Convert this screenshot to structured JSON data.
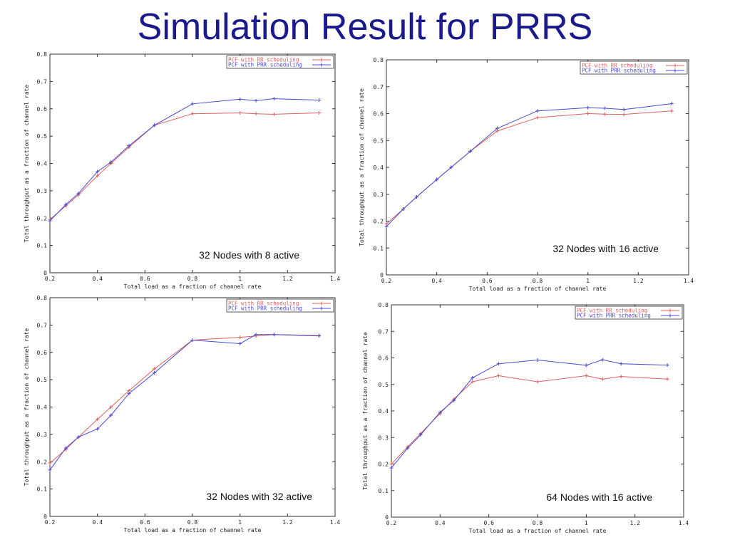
{
  "slide": {
    "title": "Simulation Result for PRRS"
  },
  "colors": {
    "title": "#1a1a8c",
    "rr": "#e06060",
    "prr": "#4a4ad0",
    "axis": "#333333"
  },
  "chart_data": [
    {
      "type": "line",
      "caption": "32 Nodes with 8 active",
      "xlabel": "Total load as a fraction of channel rate",
      "ylabel": "Total throughput as a fraction of channel rate",
      "xlim": [
        0.2,
        1.4
      ],
      "ylim": [
        0,
        0.8
      ],
      "xticks": [
        0.2,
        0.4,
        0.6,
        0.8,
        1,
        1.2,
        1.4
      ],
      "xtick_labels": [
        "0.2",
        "0.4",
        "0.6",
        "0.8",
        "1",
        "1.2",
        "1.4"
      ],
      "yticks": [
        0,
        0.1,
        0.2,
        0.3,
        0.4,
        0.5,
        0.6,
        0.7,
        0.8
      ],
      "ytick_labels": [
        "0",
        "0.1",
        "0.2",
        "0.3",
        "0.4",
        "0.5",
        "0.6",
        "0.7",
        "0.8"
      ],
      "legend": "top-right",
      "x": [
        0.2,
        0.267,
        0.32,
        0.4,
        0.457,
        0.533,
        0.64,
        0.8,
        1.0,
        1.067,
        1.143,
        1.333
      ],
      "series": [
        {
          "name": "PCF with RR scheduling",
          "color": "#e06060",
          "marker": "plus",
          "values": [
            0.195,
            0.245,
            0.285,
            0.355,
            0.4,
            0.46,
            0.54,
            0.582,
            0.585,
            0.582,
            0.58,
            0.585
          ]
        },
        {
          "name": "PCF with PRR scheduling",
          "color": "#4a4ad0",
          "marker": "plus",
          "values": [
            0.19,
            0.25,
            0.29,
            0.37,
            0.405,
            0.465,
            0.54,
            0.618,
            0.635,
            0.63,
            0.637,
            0.632
          ]
        }
      ]
    },
    {
      "type": "line",
      "caption": "32 Nodes with 16 active",
      "xlabel": "Total load as a fraction of channel rate",
      "ylabel": "Total throughput as a fraction of channel rate",
      "xlim": [
        0.2,
        1.4
      ],
      "ylim": [
        0,
        0.8
      ],
      "xticks": [
        0.2,
        0.4,
        0.6,
        0.8,
        1,
        1.2,
        1.4
      ],
      "xtick_labels": [
        "0.2",
        "0.4",
        "0.6",
        "0.8",
        "1",
        "1.2",
        "1.4"
      ],
      "yticks": [
        0,
        0.1,
        0.2,
        0.3,
        0.4,
        0.5,
        0.6,
        0.7,
        0.8
      ],
      "ytick_labels": [
        "0",
        "0.1",
        "0.2",
        "0.3",
        "0.4",
        "0.5",
        "0.6",
        "0.7",
        "0.8"
      ],
      "legend": "top-right",
      "x": [
        0.2,
        0.267,
        0.32,
        0.4,
        0.457,
        0.533,
        0.64,
        0.8,
        1.0,
        1.067,
        1.143,
        1.333
      ],
      "series": [
        {
          "name": "PCF with RR scheduling",
          "color": "#e06060",
          "marker": "plus",
          "values": [
            0.19,
            0.245,
            0.29,
            0.355,
            0.4,
            0.46,
            0.535,
            0.585,
            0.6,
            0.598,
            0.597,
            0.61
          ]
        },
        {
          "name": "PCF with PRR scheduling",
          "color": "#4a4ad0",
          "marker": "plus",
          "values": [
            0.18,
            0.245,
            0.29,
            0.355,
            0.4,
            0.46,
            0.545,
            0.61,
            0.622,
            0.62,
            0.615,
            0.637
          ]
        }
      ]
    },
    {
      "type": "line",
      "caption": "32 Nodes with 32 active",
      "xlabel": "Total load as a fraction of channel rate",
      "ylabel": "Total throughput as a fraction of channel rate",
      "xlim": [
        0.2,
        1.4
      ],
      "ylim": [
        0,
        0.8
      ],
      "xticks": [
        0.2,
        0.4,
        0.6,
        0.8,
        1,
        1.2,
        1.4
      ],
      "xtick_labels": [
        "0.2",
        "0.4",
        "0.6",
        "0.8",
        "1",
        "1.2",
        "1.4"
      ],
      "yticks": [
        0,
        0.1,
        0.2,
        0.3,
        0.4,
        0.5,
        0.6,
        0.7,
        0.8
      ],
      "ytick_labels": [
        "0",
        "0.1",
        "0.2",
        "0.3",
        "0.4",
        "0.5",
        "0.6",
        "0.7",
        "0.8"
      ],
      "legend": "top-right",
      "x": [
        0.2,
        0.267,
        0.32,
        0.4,
        0.457,
        0.533,
        0.64,
        0.8,
        1.0,
        1.067,
        1.143,
        1.333
      ],
      "series": [
        {
          "name": "PCF with RR scheduling",
          "color": "#e06060",
          "marker": "plus",
          "values": [
            0.195,
            0.245,
            0.29,
            0.355,
            0.4,
            0.46,
            0.54,
            0.645,
            0.655,
            0.66,
            0.665,
            0.66
          ]
        },
        {
          "name": "PCF with PRR scheduling",
          "color": "#4a4ad0",
          "marker": "plus",
          "values": [
            0.17,
            0.25,
            0.29,
            0.32,
            0.37,
            0.45,
            0.525,
            0.645,
            0.632,
            0.665,
            0.665,
            0.662
          ]
        }
      ]
    },
    {
      "type": "line",
      "caption": "64 Nodes with 16 active",
      "xlabel": "Total load as a fraction of channel rate",
      "ylabel": "Total throughput as a fraction of channel rate",
      "xlim": [
        0.2,
        1.4
      ],
      "ylim": [
        0,
        0.8
      ],
      "xticks": [
        0.2,
        0.4,
        0.6,
        0.8,
        1,
        1.2,
        1.4
      ],
      "xtick_labels": [
        "0.2",
        "0.4",
        "0.6",
        "0.8",
        "1",
        "1.2",
        "1.4"
      ],
      "yticks": [
        0,
        0.1,
        0.2,
        0.3,
        0.4,
        0.5,
        0.6,
        0.7,
        0.8
      ],
      "ytick_labels": [
        "0",
        "0.1",
        "0.2",
        "0.3",
        "0.4",
        "0.5",
        "0.6",
        "0.7",
        "0.8"
      ],
      "legend": "top-right",
      "x": [
        0.2,
        0.267,
        0.32,
        0.4,
        0.457,
        0.533,
        0.64,
        0.8,
        1.0,
        1.067,
        1.143,
        1.333
      ],
      "series": [
        {
          "name": "PCF with RR scheduling",
          "color": "#e06060",
          "marker": "plus",
          "values": [
            0.2,
            0.265,
            0.315,
            0.39,
            0.445,
            0.51,
            0.533,
            0.51,
            0.533,
            0.52,
            0.53,
            0.52
          ]
        },
        {
          "name": "PCF with PRR scheduling",
          "color": "#4a4ad0",
          "marker": "plus",
          "values": [
            0.185,
            0.26,
            0.31,
            0.395,
            0.44,
            0.525,
            0.578,
            0.592,
            0.572,
            0.593,
            0.578,
            0.573
          ]
        }
      ]
    }
  ]
}
